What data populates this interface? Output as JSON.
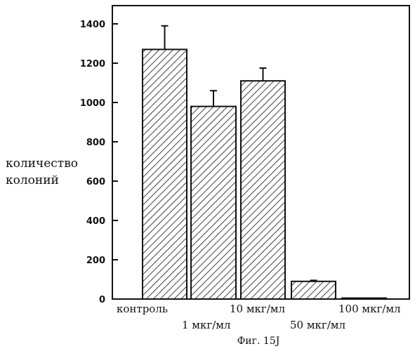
{
  "chart_data": {
    "type": "bar",
    "categories": [
      "контроль",
      "1 мкг/мл",
      "10 мкг/мл",
      "50 мкг/мл",
      "100 мкг/мл"
    ],
    "values": [
      1270,
      980,
      1110,
      90,
      5
    ],
    "error": [
      120,
      80,
      65,
      5,
      0
    ],
    "ylabel": [
      "количество",
      "колоний"
    ],
    "ylim": [
      0,
      1400
    ],
    "yticks": [
      0,
      200,
      400,
      600,
      800,
      1000,
      1200,
      1400
    ],
    "caption": "Фиг. 15J",
    "grid": false,
    "pattern": "diagonal-hatch"
  }
}
